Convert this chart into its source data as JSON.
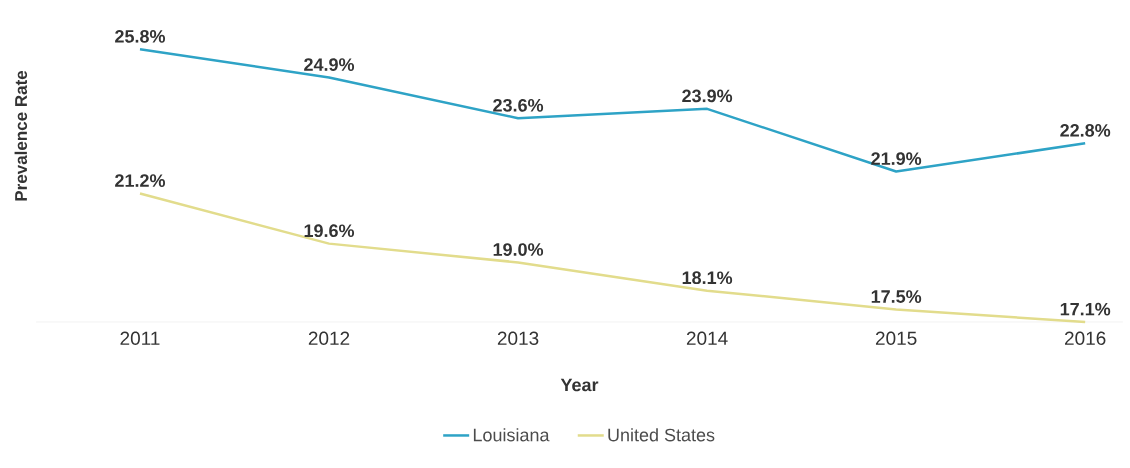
{
  "chart_data": {
    "type": "line",
    "xlabel": "Year",
    "ylabel": "Prevalence Rate",
    "categories": [
      "2011",
      "2012",
      "2013",
      "2014",
      "2015",
      "2016"
    ],
    "series": [
      {
        "name": "Louisiana",
        "color": "#2ea3c6",
        "values": [
          25.8,
          24.9,
          23.6,
          23.9,
          21.9,
          22.8
        ],
        "value_labels": [
          "25.8%",
          "24.9%",
          "23.6%",
          "23.9%",
          "21.9%",
          "22.8%"
        ]
      },
      {
        "name": "United States",
        "color": "#e2dc8c",
        "values": [
          21.2,
          19.6,
          19.0,
          18.1,
          17.5,
          17.1
        ],
        "value_labels": [
          "21.2%",
          "19.6%",
          "19.0%",
          "18.1%",
          "17.5%",
          "17.1%"
        ]
      }
    ],
    "legend": "bottom",
    "line_style": "solid"
  }
}
